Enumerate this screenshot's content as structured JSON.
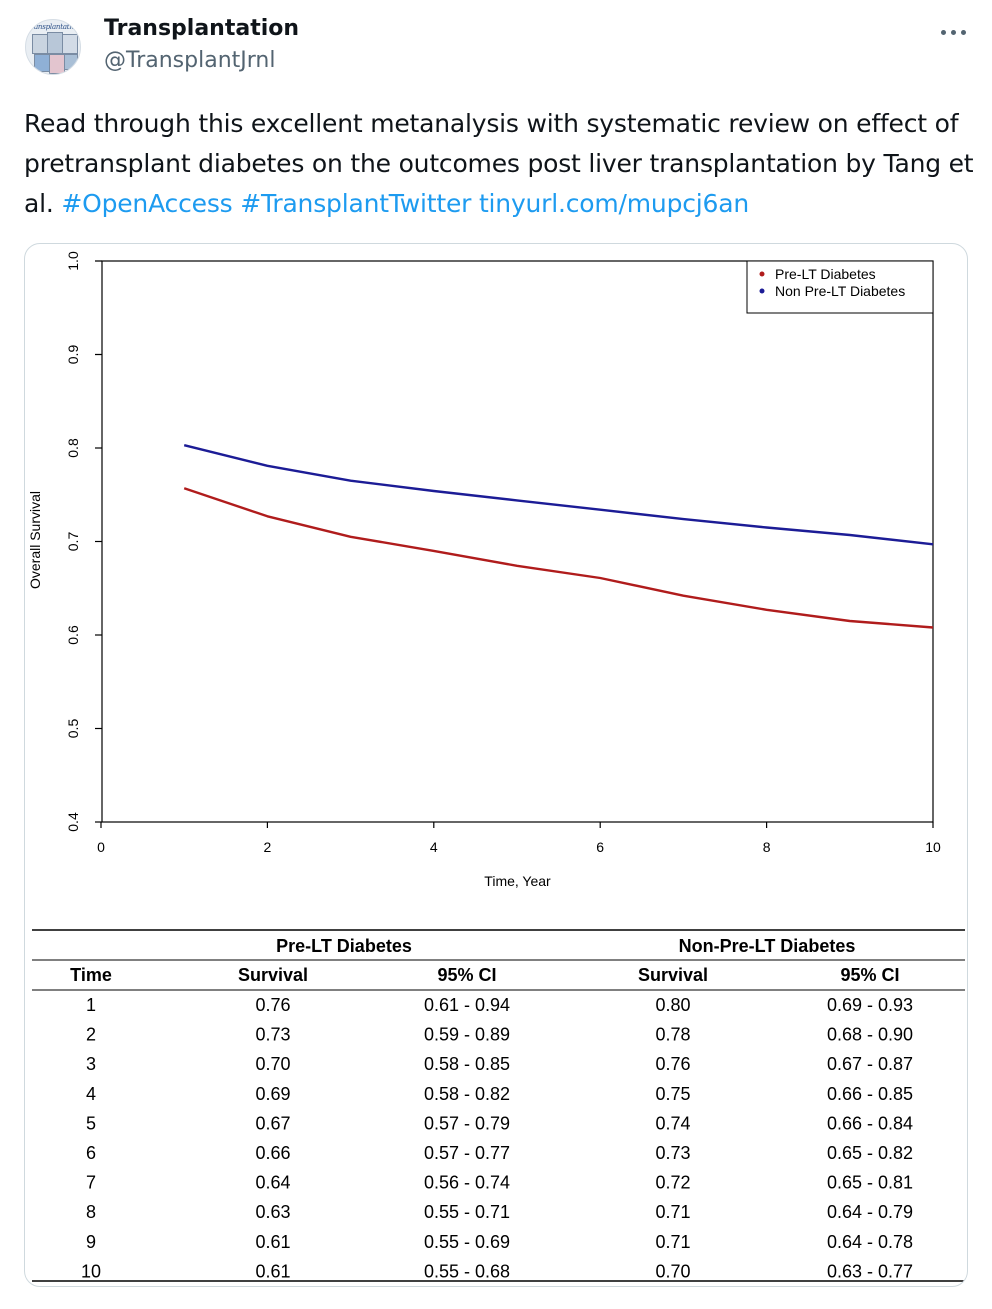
{
  "account": {
    "name": "Transplantation",
    "handle": "@TransplantJrnl",
    "avatar_text": "transplantation"
  },
  "more_icon": "more-horizontal-icon",
  "tweet": {
    "text": "Read through this excellent metanalysis with systematic review on effect of pretransplant diabetes on the outcomes post liver transplantation by Tang et al. ",
    "hashtag_1": "#OpenAccess",
    "hashtag_2": "#TransplantTwitter",
    "link": "tinyurl.com/mupcj6an"
  },
  "colors": {
    "pre_lt": "#b01c1c",
    "non_pre_lt": "#1c1c96",
    "link": "#1d9bf0"
  },
  "chart_data": {
    "type": "line",
    "xlabel": "Time, Year",
    "ylabel": "Overall Survival",
    "xlim": [
      0,
      10
    ],
    "ylim": [
      0.4,
      1.0
    ],
    "x_ticks": [
      "0",
      "2",
      "4",
      "6",
      "8",
      "10"
    ],
    "y_ticks": [
      "0.4",
      "0.5",
      "0.6",
      "0.7",
      "0.8",
      "0.9",
      "1.0"
    ],
    "legend_position": "top-right",
    "x": [
      1,
      2,
      3,
      4,
      5,
      6,
      7,
      8,
      9,
      10
    ],
    "series": [
      {
        "name": "Pre-LT Diabetes",
        "values": [
          0.757,
          0.727,
          0.705,
          0.69,
          0.674,
          0.661,
          0.642,
          0.627,
          0.615,
          0.608
        ]
      },
      {
        "name": "Non Pre-LT Diabetes",
        "values": [
          0.803,
          0.781,
          0.765,
          0.754,
          0.744,
          0.734,
          0.724,
          0.715,
          0.707,
          0.697
        ]
      }
    ]
  },
  "table": {
    "group_headers": [
      "Pre-LT Diabetes",
      "Non-Pre-LT Diabetes"
    ],
    "columns": [
      "Time",
      "Survival",
      "95% CI",
      "Survival",
      "95% CI"
    ],
    "rows": [
      [
        "1",
        "0.76",
        "0.61 - 0.94",
        "0.80",
        "0.69 - 0.93"
      ],
      [
        "2",
        "0.73",
        "0.59 - 0.89",
        "0.78",
        "0.68 - 0.90"
      ],
      [
        "3",
        "0.70",
        "0.58 - 0.85",
        "0.76",
        "0.67 - 0.87"
      ],
      [
        "4",
        "0.69",
        "0.58 - 0.82",
        "0.75",
        "0.66 - 0.85"
      ],
      [
        "5",
        "0.67",
        "0.57 - 0.79",
        "0.74",
        "0.66 - 0.84"
      ],
      [
        "6",
        "0.66",
        "0.57 - 0.77",
        "0.73",
        "0.65 - 0.82"
      ],
      [
        "7",
        "0.64",
        "0.56 - 0.74",
        "0.72",
        "0.65 - 0.81"
      ],
      [
        "8",
        "0.63",
        "0.55 - 0.71",
        "0.71",
        "0.64 - 0.79"
      ],
      [
        "9",
        "0.61",
        "0.55 - 0.69",
        "0.71",
        "0.64 - 0.78"
      ],
      [
        "10",
        "0.61",
        "0.55 - 0.68",
        "0.70",
        "0.63 - 0.77"
      ]
    ]
  }
}
